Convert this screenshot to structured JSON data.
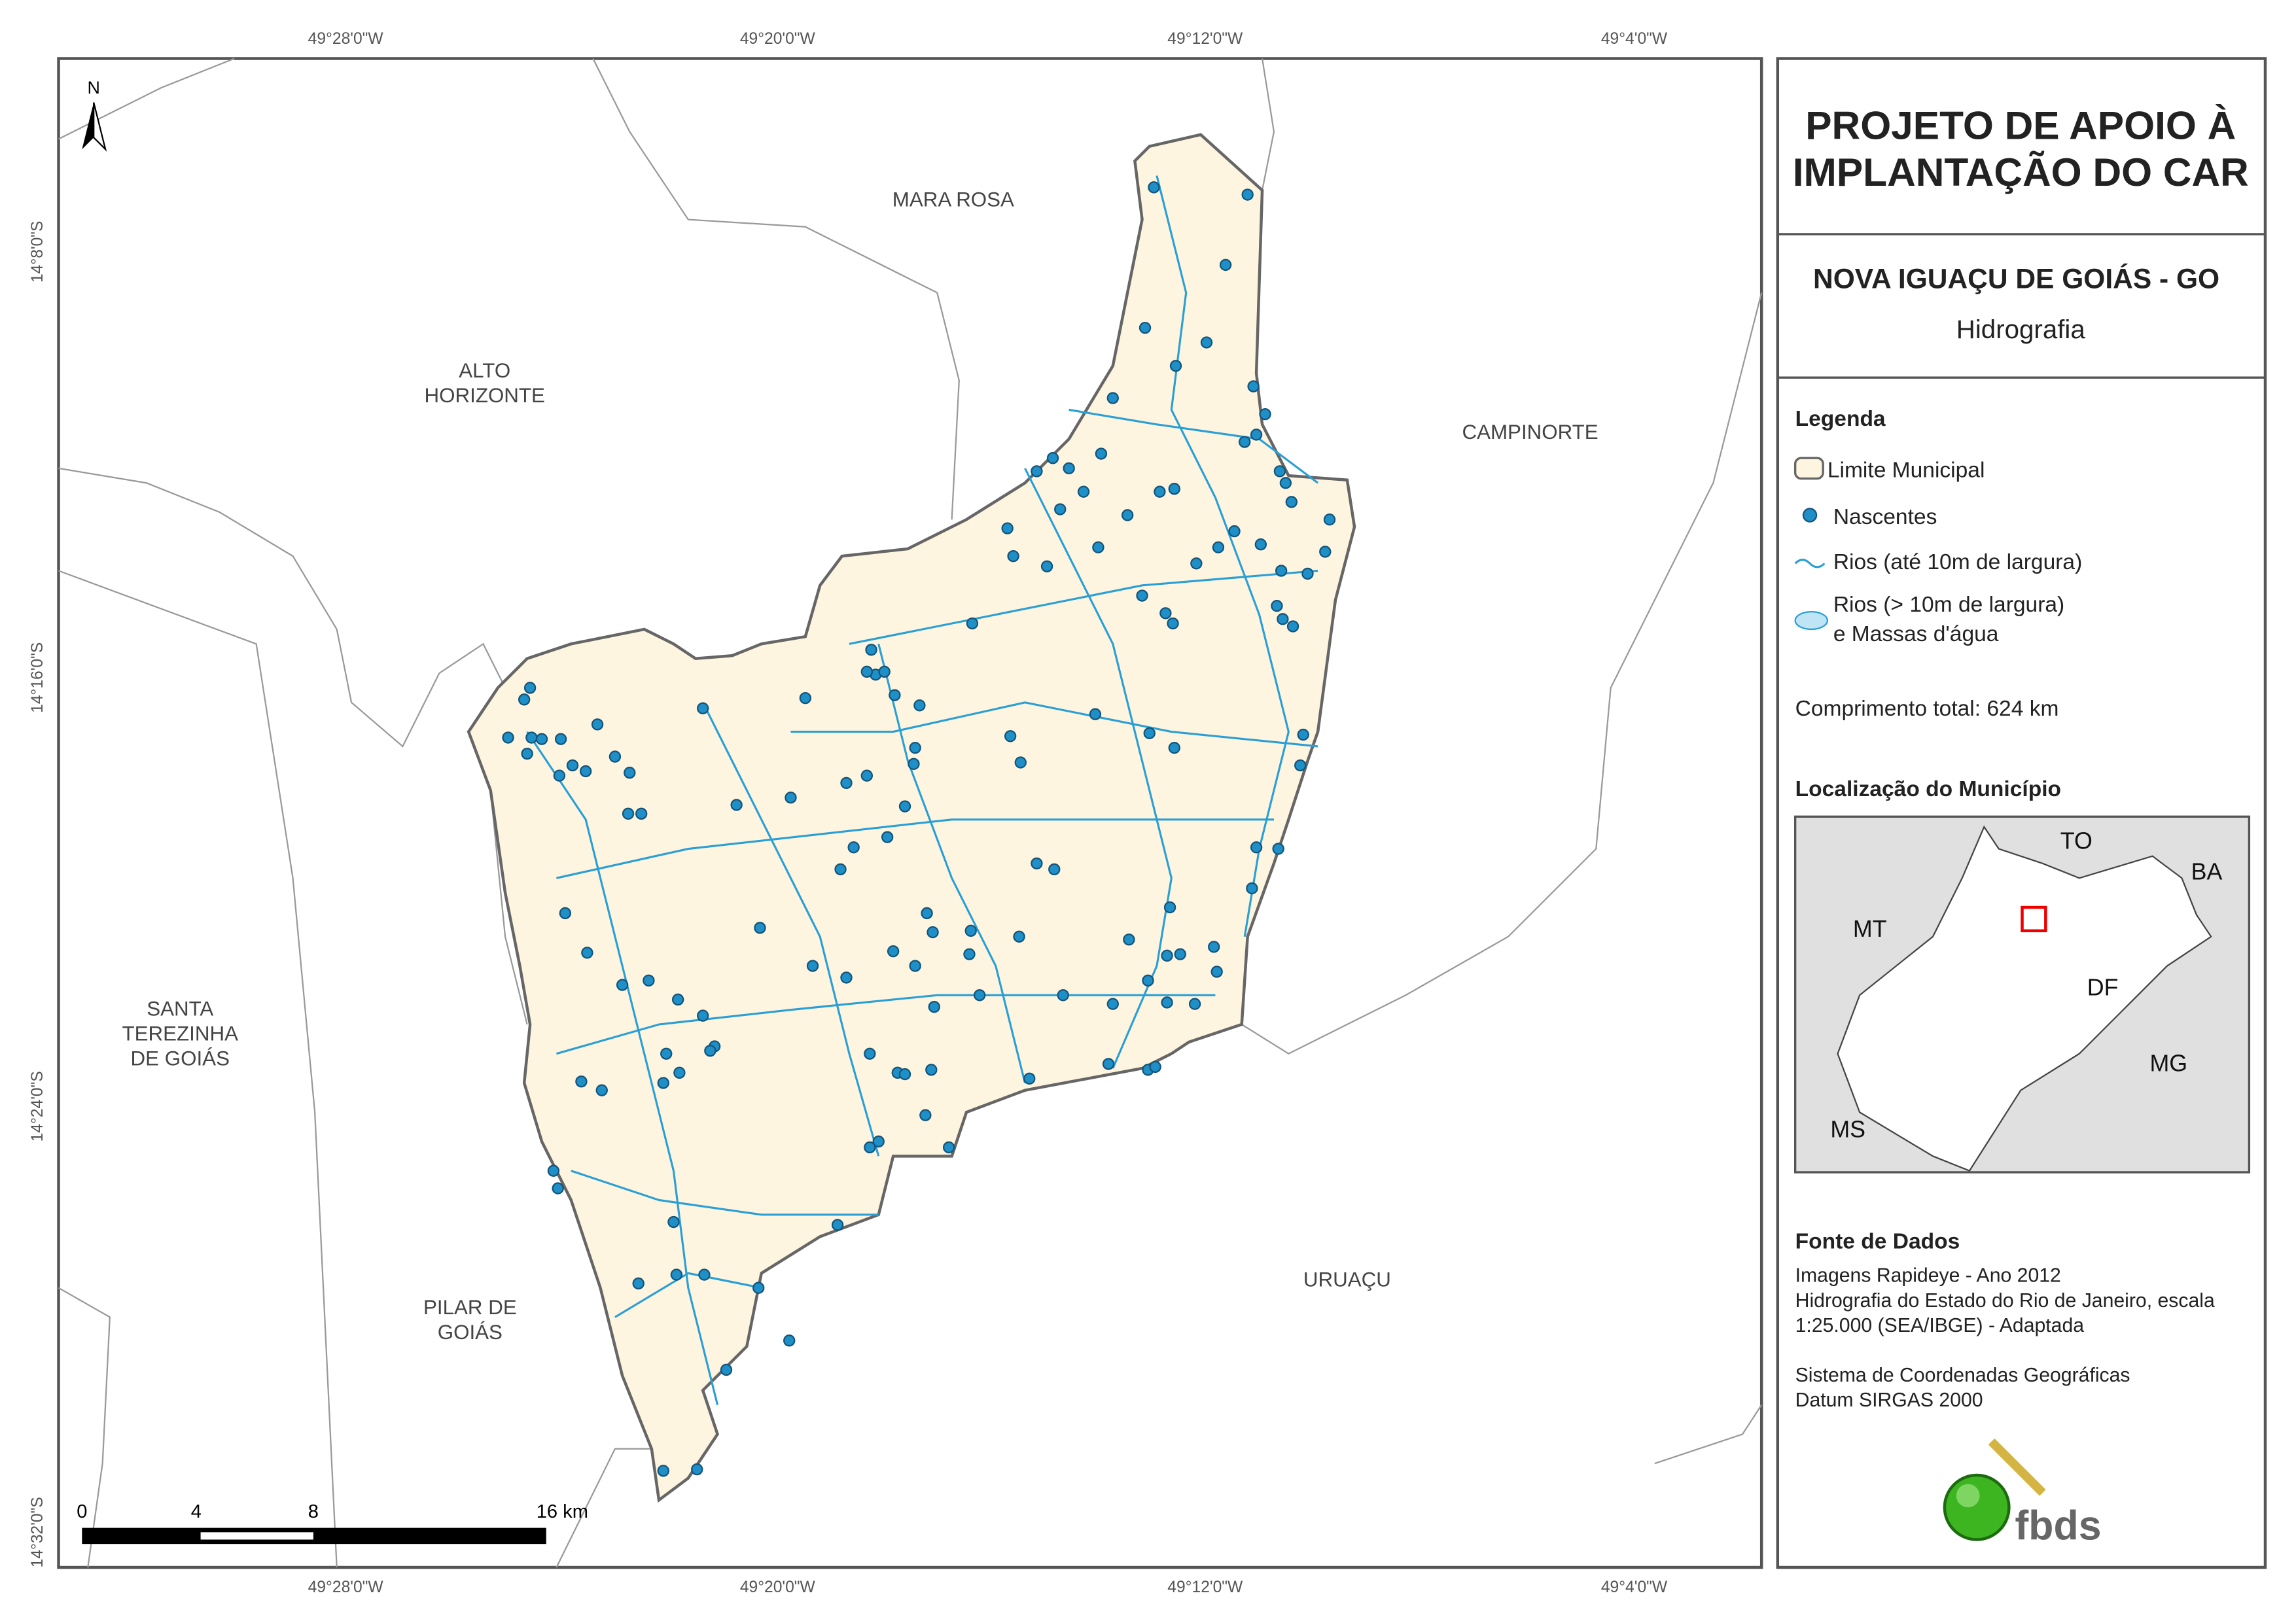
{
  "map": {
    "top_longitudes": [
      "49°28'0\"W",
      "49°20'0\"W",
      "49°12'0\"W",
      "49°4'0\"W"
    ],
    "bottom_longitudes": [
      "49°28'0\"W",
      "49°20'0\"W",
      "49°12'0\"W",
      "49°4'0\"W"
    ],
    "latitudes": [
      "14°8'0\"S",
      "14°16'0\"S",
      "14°24'0\"S",
      "14°32'0\"S"
    ],
    "neighbors": [
      [
        "MARA ROSA"
      ],
      [
        "ALTO",
        "HORIZONTE"
      ],
      [
        "CAMPINORTE"
      ],
      [
        "SANTA",
        "TEREZINHA",
        "DE GOIÁS"
      ],
      [
        "PILAR DE",
        "GOIÁS"
      ],
      [
        "URUAÇU"
      ]
    ],
    "north": "N",
    "scale_labels": [
      "0",
      "4",
      "8",
      "16 km"
    ]
  },
  "panel": {
    "title": [
      "PROJETO DE APOIO À",
      "IMPLANTAÇÃO DO CAR"
    ],
    "municipality": "NOVA IGUAÇU DE GOIÁS - GO",
    "theme": "Hidrografia",
    "legend": {
      "title": "Legenda",
      "items": [
        [
          "Limite Municipal"
        ],
        [
          "Nascentes"
        ],
        [
          "Rios (até 10m de largura)"
        ],
        [
          "Rios (> 10m de largura)",
          "e Massas d'água"
        ]
      ]
    },
    "total_length": "Comprimento total: 624 km",
    "location": {
      "title": "Localização do Município",
      "states": [
        "TO",
        "BA",
        "MT",
        "DF",
        "MG",
        "MS"
      ]
    },
    "sources": {
      "title": "Fonte de Dados",
      "lines": [
        "Imagens Rapideye - Ano 2012",
        "Hidrografia do Estado do Rio de Janeiro, escala",
        "1:25.000 (SEA/IBGE) - Adaptada",
        "",
        "Sistema de Coordenadas Geográficas",
        "Datum SIRGAS 2000"
      ]
    },
    "logo": "fbds"
  }
}
